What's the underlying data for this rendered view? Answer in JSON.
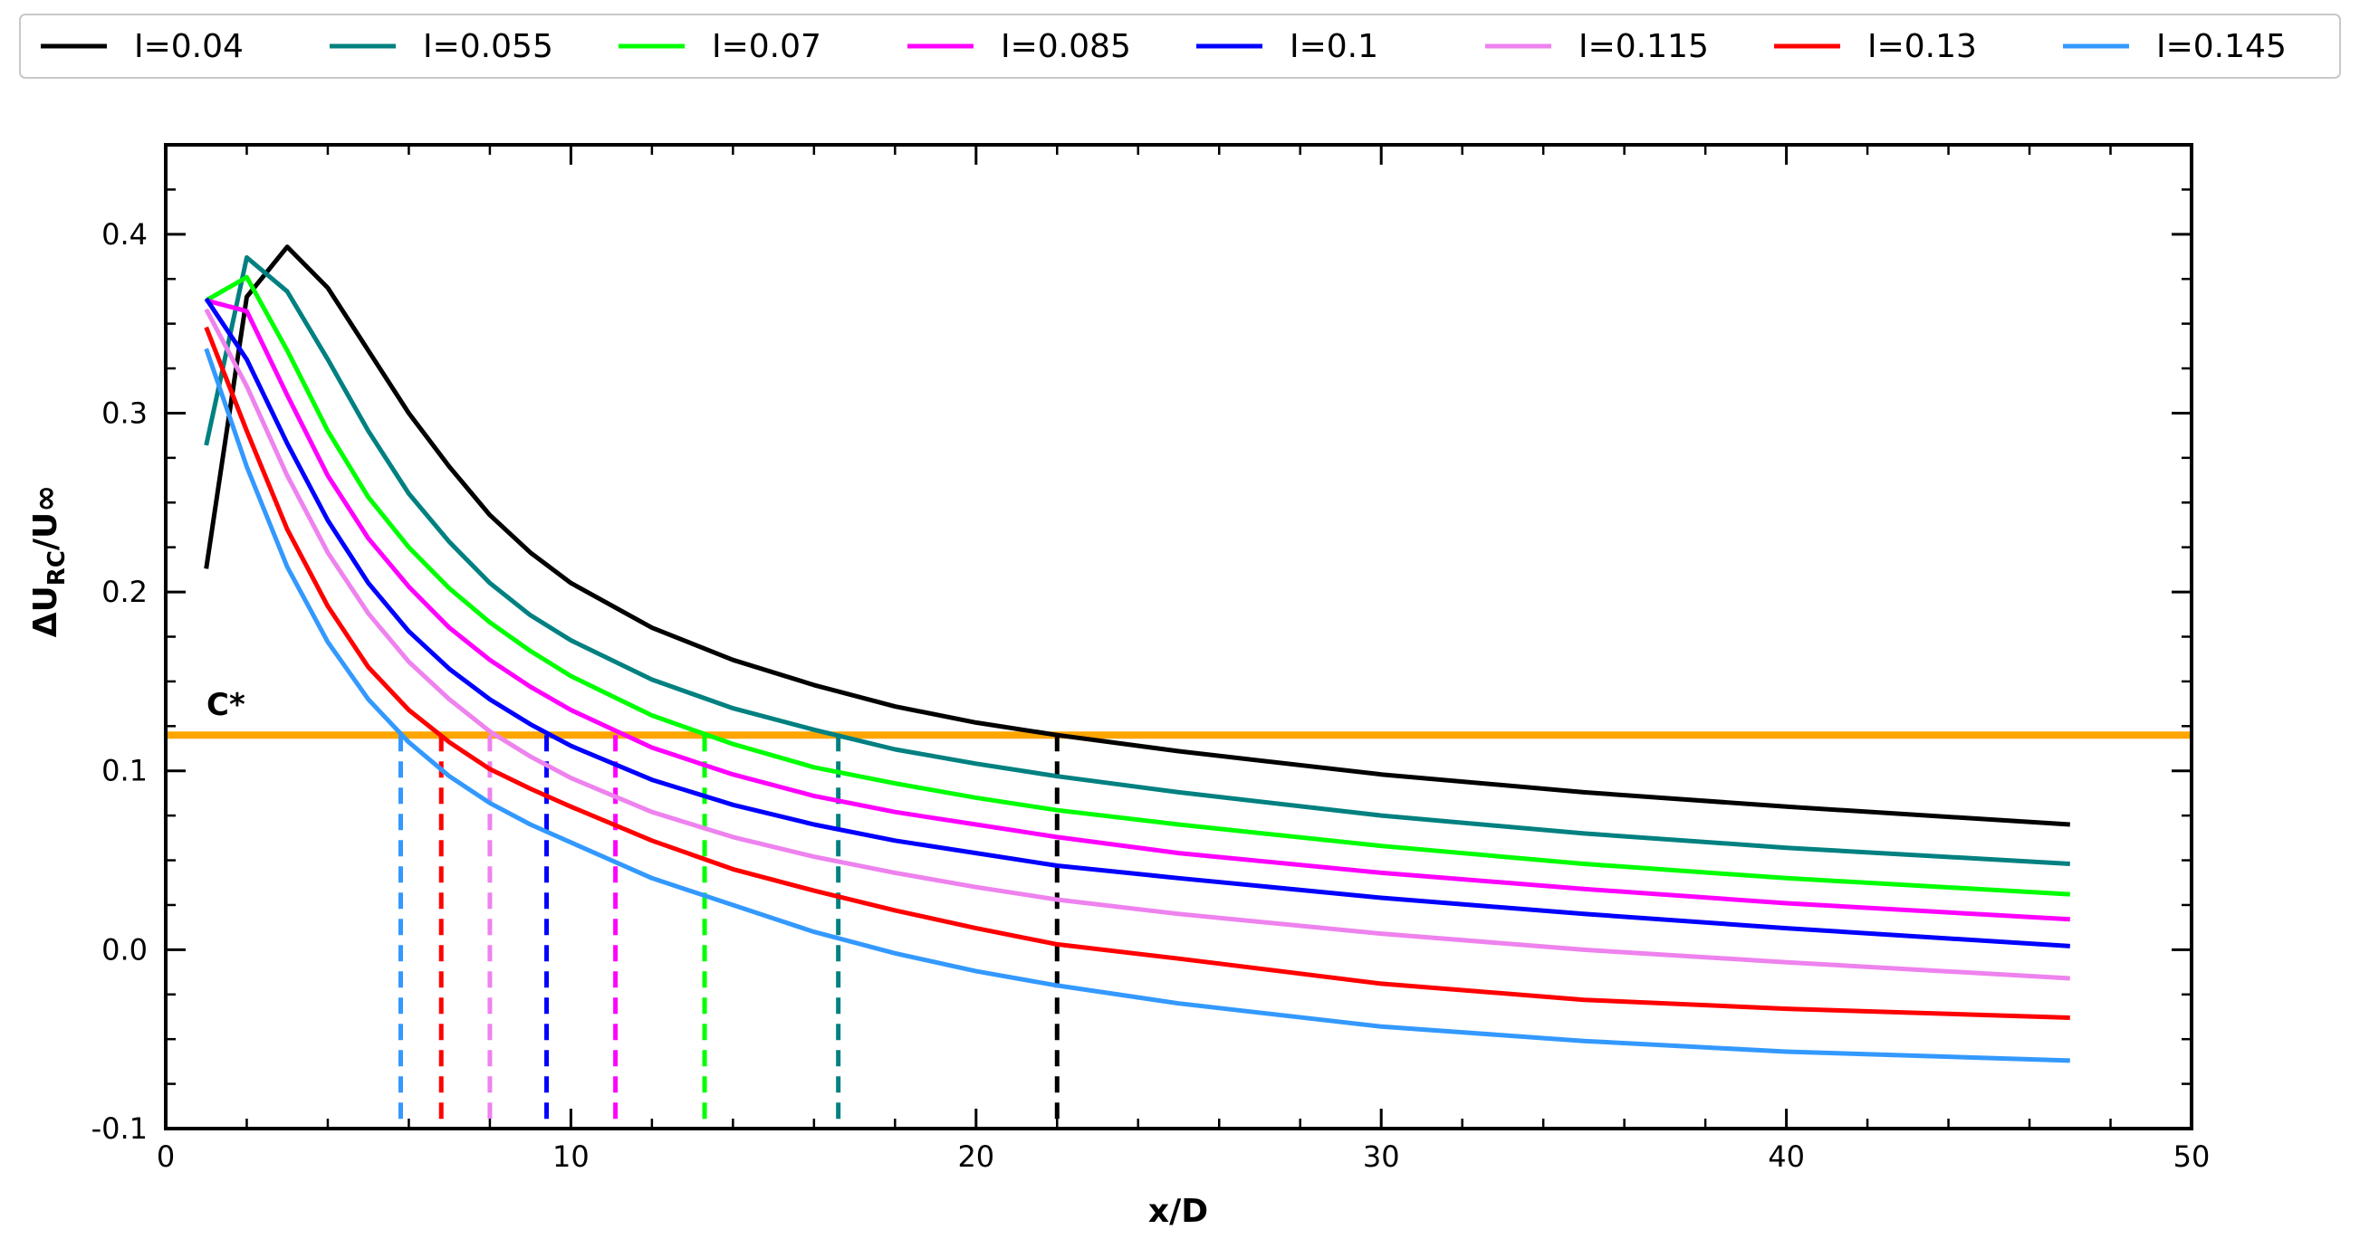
{
  "chart_data": {
    "type": "line",
    "xlabel": "x/D",
    "ylabel_main": "ΔU",
    "ylabel_sub": "RC",
    "ylabel_tail": "/U∞",
    "xlim": [
      0,
      50
    ],
    "ylim": [
      -0.1,
      0.45
    ],
    "x_ticks": [
      0,
      10,
      20,
      30,
      40,
      50
    ],
    "y_ticks": [
      -0.1,
      0.0,
      0.1,
      0.2,
      0.3,
      0.4
    ],
    "x_tick_labels": [
      "0",
      "10",
      "20",
      "30",
      "40",
      "50"
    ],
    "y_tick_labels": [
      "-0.1",
      "0.0",
      "0.1",
      "0.2",
      "0.3",
      "0.4"
    ],
    "grid": false,
    "legend_position": "top, outside the plot in one row",
    "threshold": {
      "label": "C*",
      "y": 0.12,
      "color": "#FFA500"
    },
    "series": [
      {
        "name": "I=0.04",
        "color": "#000000",
        "crossing_x": 22.0,
        "x": [
          1,
          2,
          3,
          4,
          5,
          6,
          7,
          8,
          9,
          10,
          12,
          14,
          16,
          18,
          20,
          22,
          25,
          30,
          35,
          40,
          47
        ],
        "y": [
          0.213,
          0.365,
          0.393,
          0.37,
          0.335,
          0.3,
          0.27,
          0.243,
          0.222,
          0.205,
          0.18,
          0.162,
          0.148,
          0.136,
          0.127,
          0.12,
          0.111,
          0.098,
          0.088,
          0.08,
          0.07
        ]
      },
      {
        "name": "I=0.055",
        "color": "#008080",
        "crossing_x": 16.6,
        "x": [
          1,
          2,
          3,
          4,
          5,
          6,
          7,
          8,
          9,
          10,
          12,
          14,
          16,
          18,
          20,
          22,
          25,
          30,
          35,
          40,
          47
        ],
        "y": [
          0.282,
          0.387,
          0.368,
          0.33,
          0.29,
          0.255,
          0.228,
          0.205,
          0.187,
          0.173,
          0.151,
          0.135,
          0.123,
          0.112,
          0.104,
          0.097,
          0.088,
          0.075,
          0.065,
          0.057,
          0.048
        ]
      },
      {
        "name": "I=0.07",
        "color": "#00FF00",
        "crossing_x": 13.3,
        "x": [
          1,
          2,
          3,
          4,
          5,
          6,
          7,
          8,
          9,
          10,
          12,
          14,
          16,
          18,
          20,
          22,
          25,
          30,
          35,
          40,
          47
        ],
        "y": [
          0.363,
          0.376,
          0.335,
          0.29,
          0.253,
          0.225,
          0.202,
          0.183,
          0.167,
          0.153,
          0.131,
          0.115,
          0.102,
          0.093,
          0.085,
          0.078,
          0.07,
          0.058,
          0.048,
          0.04,
          0.031
        ]
      },
      {
        "name": "I=0.085",
        "color": "#FF00FF",
        "crossing_x": 11.1,
        "x": [
          1,
          2,
          3,
          4,
          5,
          6,
          7,
          8,
          9,
          10,
          12,
          14,
          16,
          18,
          20,
          22,
          25,
          30,
          35,
          40,
          47
        ],
        "y": [
          0.363,
          0.357,
          0.31,
          0.265,
          0.23,
          0.203,
          0.18,
          0.162,
          0.147,
          0.134,
          0.113,
          0.098,
          0.086,
          0.077,
          0.07,
          0.063,
          0.054,
          0.043,
          0.034,
          0.026,
          0.017
        ]
      },
      {
        "name": "I=0.1",
        "color": "#0000FF",
        "crossing_x": 9.4,
        "x": [
          1,
          2,
          3,
          4,
          5,
          6,
          7,
          8,
          9,
          10,
          12,
          14,
          16,
          18,
          20,
          22,
          25,
          30,
          35,
          40,
          47
        ],
        "y": [
          0.364,
          0.33,
          0.283,
          0.24,
          0.205,
          0.178,
          0.157,
          0.14,
          0.126,
          0.114,
          0.095,
          0.081,
          0.07,
          0.061,
          0.054,
          0.047,
          0.04,
          0.029,
          0.02,
          0.012,
          0.002
        ]
      },
      {
        "name": "I=0.115",
        "color": "#EE82EE",
        "crossing_x": 8.0,
        "x": [
          1,
          2,
          3,
          4,
          5,
          6,
          7,
          8,
          9,
          10,
          12,
          14,
          16,
          18,
          20,
          22,
          25,
          30,
          35,
          40,
          47
        ],
        "y": [
          0.358,
          0.315,
          0.265,
          0.222,
          0.188,
          0.161,
          0.14,
          0.122,
          0.108,
          0.096,
          0.077,
          0.063,
          0.052,
          0.043,
          0.035,
          0.028,
          0.02,
          0.009,
          0.0,
          -0.007,
          -0.016
        ]
      },
      {
        "name": "I=0.13",
        "color": "#FF0000",
        "crossing_x": 6.8,
        "x": [
          1,
          2,
          3,
          4,
          5,
          6,
          7,
          8,
          9,
          10,
          12,
          14,
          16,
          18,
          20,
          22,
          25,
          30,
          35,
          40,
          47
        ],
        "y": [
          0.348,
          0.29,
          0.235,
          0.192,
          0.158,
          0.134,
          0.116,
          0.101,
          0.09,
          0.08,
          0.061,
          0.045,
          0.033,
          0.022,
          0.012,
          0.003,
          -0.005,
          -0.019,
          -0.028,
          -0.033,
          -0.038
        ]
      },
      {
        "name": "I=0.145",
        "color": "#3399FF",
        "crossing_x": 5.8,
        "x": [
          1,
          2,
          3,
          4,
          5,
          6,
          7,
          8,
          9,
          10,
          12,
          14,
          16,
          18,
          20,
          22,
          25,
          30,
          35,
          40,
          47
        ],
        "y": [
          0.336,
          0.27,
          0.214,
          0.172,
          0.14,
          0.116,
          0.097,
          0.082,
          0.07,
          0.06,
          0.04,
          0.025,
          0.01,
          -0.002,
          -0.012,
          -0.02,
          -0.03,
          -0.043,
          -0.051,
          -0.057,
          -0.062
        ]
      }
    ]
  }
}
